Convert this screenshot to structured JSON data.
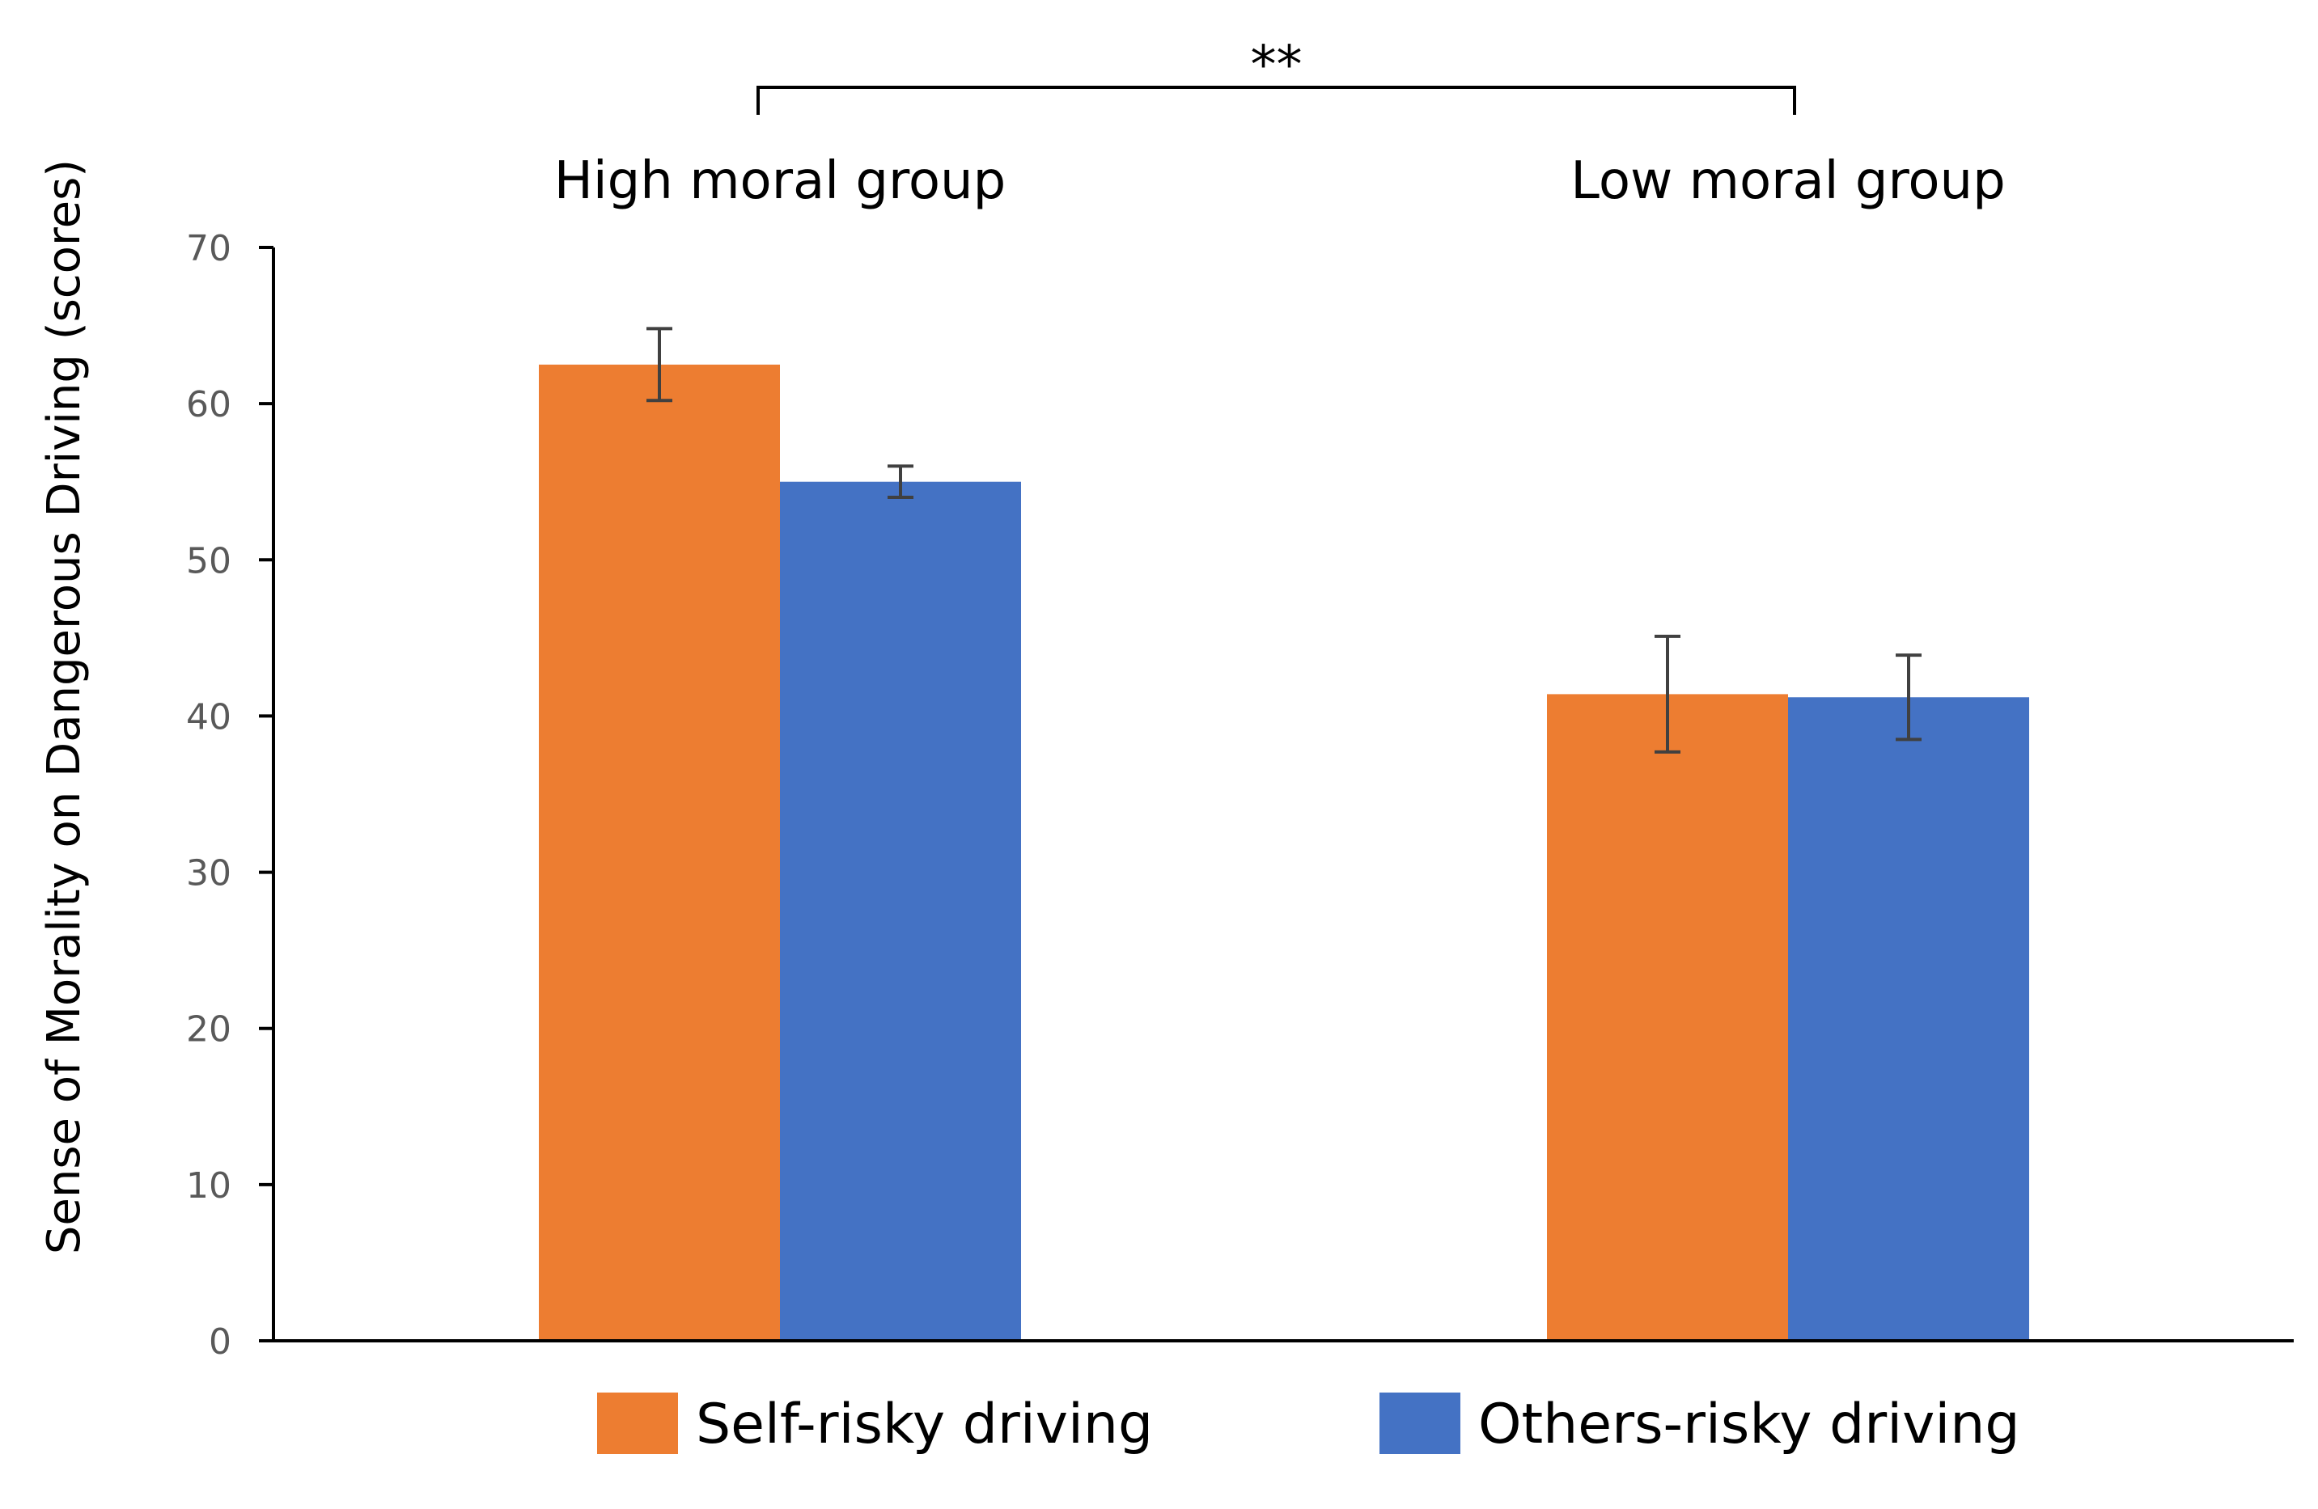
{
  "chart_data": {
    "type": "bar",
    "title": "",
    "categories": [
      "High moral group",
      "Low moral group"
    ],
    "series": [
      {
        "name": "Self-risky driving",
        "color": "#ED7D31",
        "values": [
          62.5,
          41.4
        ],
        "errors": [
          2.3,
          3.7
        ]
      },
      {
        "name": "Others-risky driving",
        "color": "#4472C4",
        "values": [
          55.0,
          41.2
        ],
        "errors": [
          1.0,
          2.7
        ]
      }
    ],
    "xlabel": "",
    "ylabel": "Sense of Morality on Dangerous Driving (scores)",
    "ylim": [
      0,
      70
    ],
    "yticks": [
      0,
      10,
      20,
      30,
      40,
      50,
      60,
      70
    ],
    "grid": false,
    "legend": "bottom",
    "categories_position": "top",
    "annotations": [
      {
        "text": "**",
        "type": "significance-bracket",
        "between": [
          "High moral group",
          "Low moral group"
        ]
      }
    ]
  }
}
